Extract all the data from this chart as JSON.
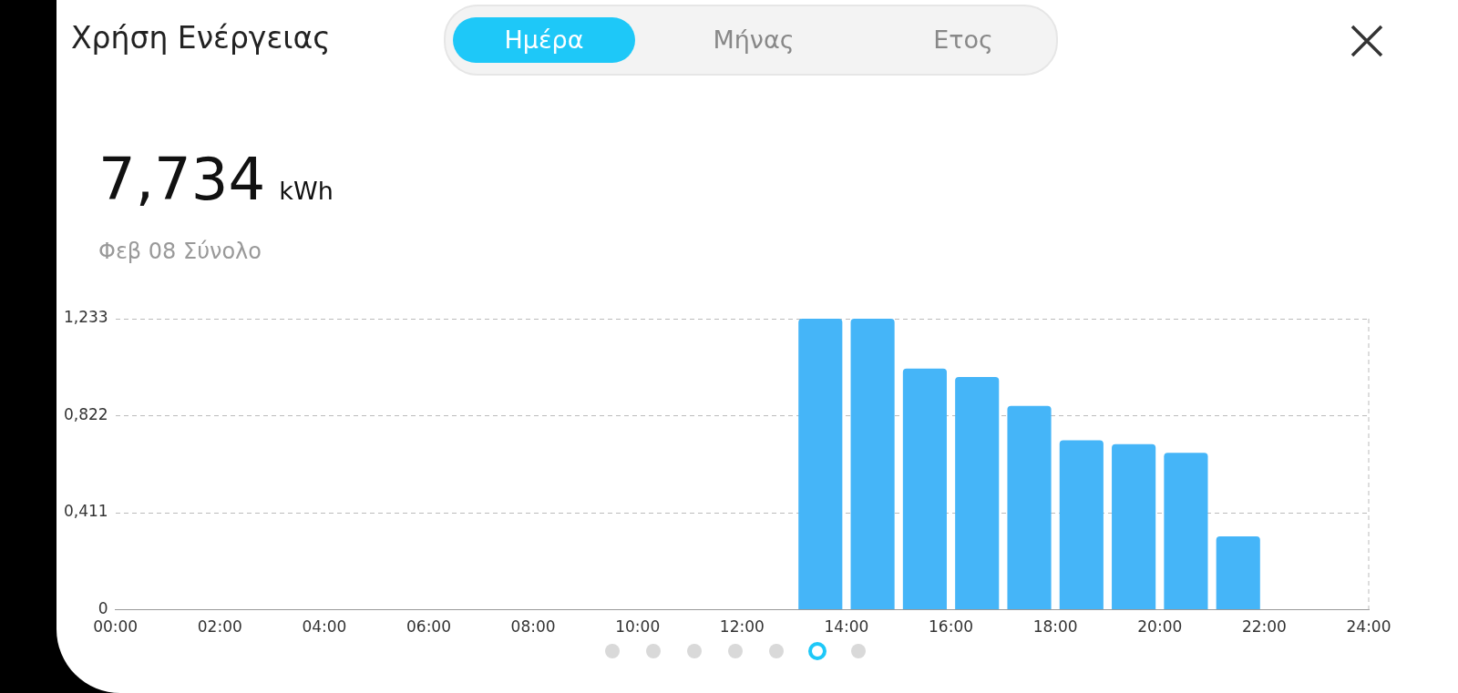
{
  "chart_data": {
    "type": "bar",
    "title": "Χρήση Ενέργειας",
    "subtitle": "7,734 kWh",
    "annotations": [
      "Ημέρα",
      "Μήνας",
      "Ετος",
      "Φεβ 08 Σύνολο"
    ],
    "x": [
      0.5,
      1.5,
      2.5,
      3.5,
      4.5,
      5.5,
      6.5,
      7.5,
      8.5,
      9.5,
      10.5,
      11.5,
      12.5,
      13.5,
      14.5,
      15.5,
      16.5,
      17.5,
      18.5,
      19.5,
      20.5,
      21.5
    ],
    "values": [
      0,
      0,
      0,
      0,
      0,
      0,
      0,
      0,
      0,
      0,
      0,
      0,
      0,
      1.233,
      1.233,
      1.022,
      0.986,
      0.864,
      0.718,
      0.702,
      0.665,
      0.311
    ],
    "color": "#45b5f8",
    "xlim": [
      0,
      24
    ],
    "xticks": [
      {
        "value": 0,
        "label": "00:00"
      },
      {
        "value": 2,
        "label": "02:00"
      },
      {
        "value": 4,
        "label": "04:00"
      },
      {
        "value": 6,
        "label": "06:00"
      },
      {
        "value": 8,
        "label": "08:00"
      },
      {
        "value": 10,
        "label": "10:00"
      },
      {
        "value": 12,
        "label": "12:00"
      },
      {
        "value": 14,
        "label": "14:00"
      },
      {
        "value": 16,
        "label": "16:00"
      },
      {
        "value": 18,
        "label": "18:00"
      },
      {
        "value": 20,
        "label": "20:00"
      },
      {
        "value": 22,
        "label": "22:00"
      },
      {
        "value": 24,
        "label": "24:00"
      }
    ],
    "ylim": [
      0,
      1.233
    ],
    "yticks": [
      0,
      {
        "value": 0.411,
        "label": "0,411"
      },
      {
        "value": 0.822,
        "label": "0,822"
      },
      {
        "value": 1.233,
        "label": "1,233"
      }
    ],
    "grid": "y",
    "legend": false
  }
}
